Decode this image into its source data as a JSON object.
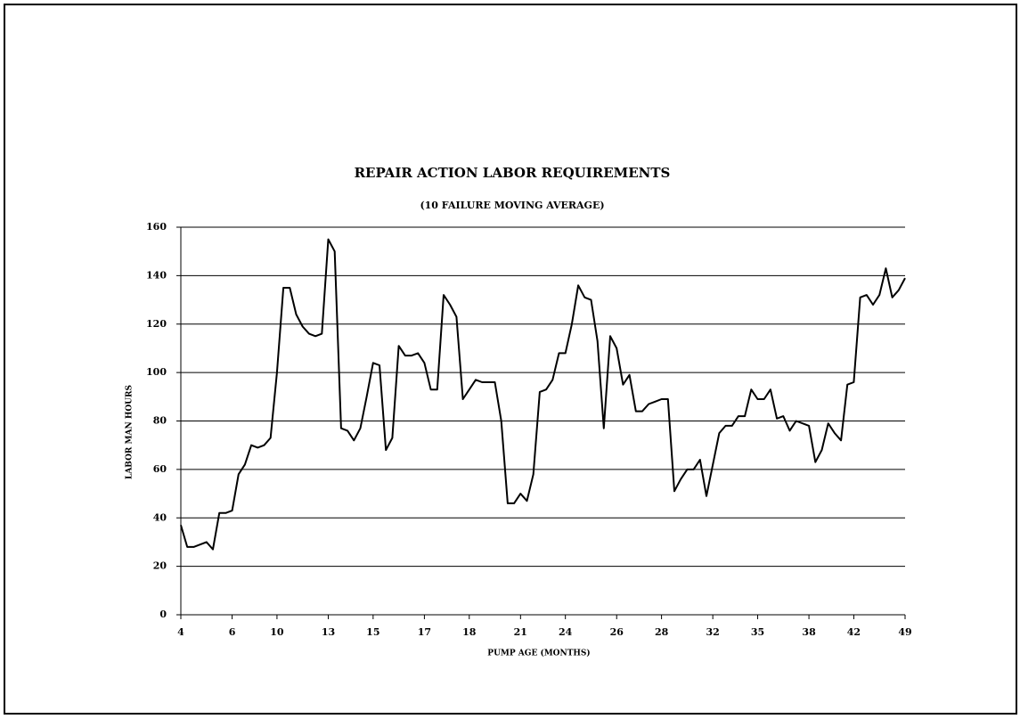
{
  "chart_data": {
    "type": "line",
    "title": "REPAIR ACTION LABOR REQUIREMENTS",
    "subtitle": "(10 FAILURE MOVING AVERAGE)",
    "y_label": "LABOR MAN HOURS",
    "x_label": "PUMP AGE (MONTHS)",
    "categories": [
      "4",
      null,
      null,
      null,
      null,
      null,
      null,
      null,
      "6",
      null,
      null,
      null,
      null,
      null,
      null,
      "10",
      null,
      null,
      null,
      null,
      null,
      null,
      null,
      "13",
      null,
      null,
      null,
      null,
      null,
      null,
      "15",
      null,
      null,
      null,
      null,
      null,
      null,
      null,
      "17",
      null,
      null,
      null,
      null,
      null,
      null,
      "18",
      null,
      null,
      null,
      null,
      null,
      null,
      null,
      "21",
      null,
      null,
      null,
      null,
      null,
      null,
      "24",
      null,
      null,
      null,
      null,
      null,
      null,
      null,
      "26",
      null,
      null,
      null,
      null,
      null,
      null,
      "28",
      null,
      null,
      null,
      null,
      null,
      null,
      null,
      "32",
      null,
      null,
      null,
      null,
      null,
      null,
      "35",
      null,
      null,
      null,
      null,
      null,
      null,
      null,
      "38",
      null,
      null,
      null,
      null,
      null,
      null,
      "42",
      null,
      null,
      null,
      null,
      null,
      null,
      null,
      "49"
    ],
    "values": [
      37,
      28,
      28,
      29,
      30,
      27,
      42,
      42,
      43,
      58,
      62,
      70,
      69,
      70,
      73,
      100,
      135,
      135,
      124,
      119,
      116,
      115,
      116,
      155,
      150,
      77,
      76,
      72,
      77,
      90,
      104,
      103,
      68,
      73,
      111,
      107,
      107,
      108,
      104,
      93,
      93,
      132,
      128,
      123,
      89,
      93,
      97,
      96,
      96,
      96,
      80,
      46,
      46,
      50,
      47,
      58,
      92,
      93,
      97,
      108,
      108,
      120,
      136,
      131,
      130,
      113,
      77,
      115,
      110,
      95,
      99,
      84,
      84,
      87,
      88,
      89,
      89,
      51,
      56,
      60,
      60,
      64,
      49,
      62,
      75,
      78,
      78,
      82,
      82,
      93,
      89,
      89,
      93,
      81,
      82,
      76,
      80,
      79,
      78,
      63,
      68,
      79,
      75,
      72,
      95,
      96,
      131,
      132,
      128,
      132,
      143,
      131,
      134,
      139
    ],
    "color": "#000000",
    "ylim": [
      0,
      160
    ],
    "yticks": [
      0,
      20,
      40,
      60,
      80,
      100,
      120,
      140,
      160
    ],
    "grid": true
  }
}
